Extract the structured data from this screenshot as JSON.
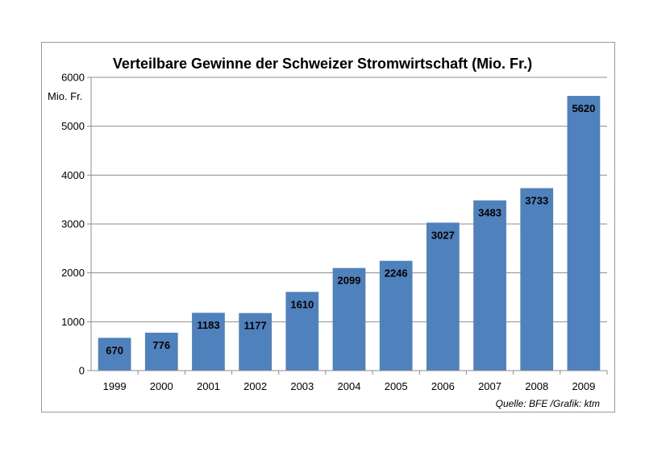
{
  "chart_data": {
    "type": "bar",
    "title": "Verteilbare Gewinne der Schweizer Stromwirtschaft (Mio. Fr.)",
    "ylabel": "Mio. Fr.",
    "xlabel": "",
    "categories": [
      "1999",
      "2000",
      "2001",
      "2002",
      "2003",
      "2004",
      "2005",
      "2006",
      "2007",
      "2008",
      "2009"
    ],
    "values": [
      670,
      776,
      1183,
      1177,
      1610,
      2099,
      2246,
      3027,
      3483,
      3733,
      5620
    ],
    "ylim": [
      0,
      6000
    ],
    "yticks": [
      0,
      1000,
      2000,
      3000,
      4000,
      5000,
      6000
    ],
    "grid": true,
    "legend": "none",
    "bar_color": "#4f81bd",
    "grid_color": "#8c8c8c",
    "source": "Quelle: BFE /Grafik: ktm"
  }
}
